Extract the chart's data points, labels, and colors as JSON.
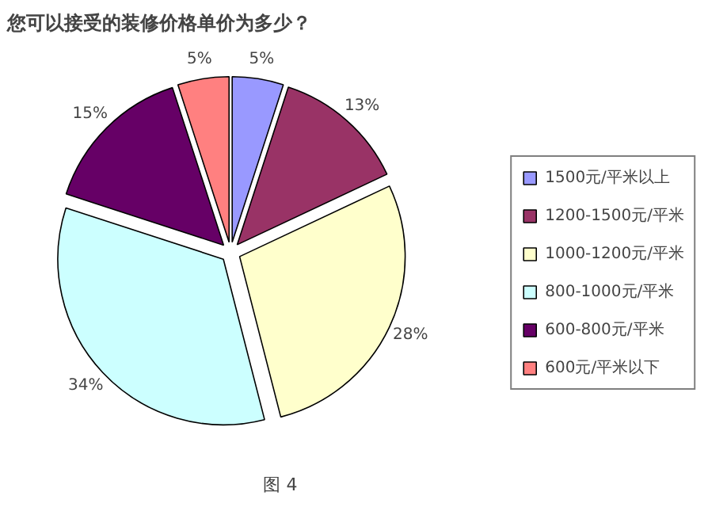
{
  "chart_data": {
    "type": "pie",
    "title": "您可以接受的装修价格单价为多少？",
    "categories": [
      "1500元/平米以上",
      "1200-1500元/平米",
      "1000-1200元/平米",
      "800-1000元/平米",
      "600-800元/平米",
      "600元/平米以下"
    ],
    "values": [
      5,
      13,
      28,
      34,
      15,
      5
    ],
    "value_labels": [
      "5%",
      "13%",
      "28%",
      "34%",
      "15%",
      "5%"
    ],
    "colors": [
      "#9999ff",
      "#993366",
      "#ffffcc",
      "#ccffff",
      "#660066",
      "#ff8080"
    ],
    "legend": "right",
    "annotations": [
      "图 4"
    ]
  }
}
